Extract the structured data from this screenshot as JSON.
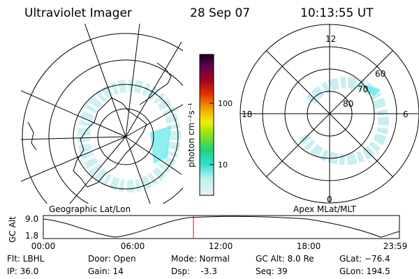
{
  "header": {
    "instrument": "Ultraviolet Imager",
    "date": "28 Sep 07",
    "time": "10:13:55 UT"
  },
  "colorbar": {
    "unit": "photon cm⁻²s⁻¹",
    "labels": [
      "100",
      "10"
    ]
  },
  "left_panel": {
    "caption": "Geographic Lat/Lon"
  },
  "right_panel": {
    "caption": "Apex MLat/MLT",
    "mlt_labels": [
      "12",
      "18",
      "6",
      "0"
    ],
    "lat_labels": [
      "60",
      "70",
      "80"
    ]
  },
  "timeline": {
    "axis_label": "GC Alt",
    "y_labels": [
      "9.0",
      "1.8"
    ],
    "x_labels": [
      "00:00",
      "06:00",
      "12:00",
      "18:00",
      "23:59"
    ]
  },
  "footer": {
    "rows": [
      [
        "Flt: LBHL",
        "Door: Open",
        "Mode: Normal",
        "GC Alt: 8.0 Re",
        "GLat: −76.4"
      ],
      [
        "IP: 36.0",
        "Gain: 14",
        "Dsp:    -3.3",
        "Seq: 39",
        "GLon: 194.5"
      ]
    ]
  }
}
